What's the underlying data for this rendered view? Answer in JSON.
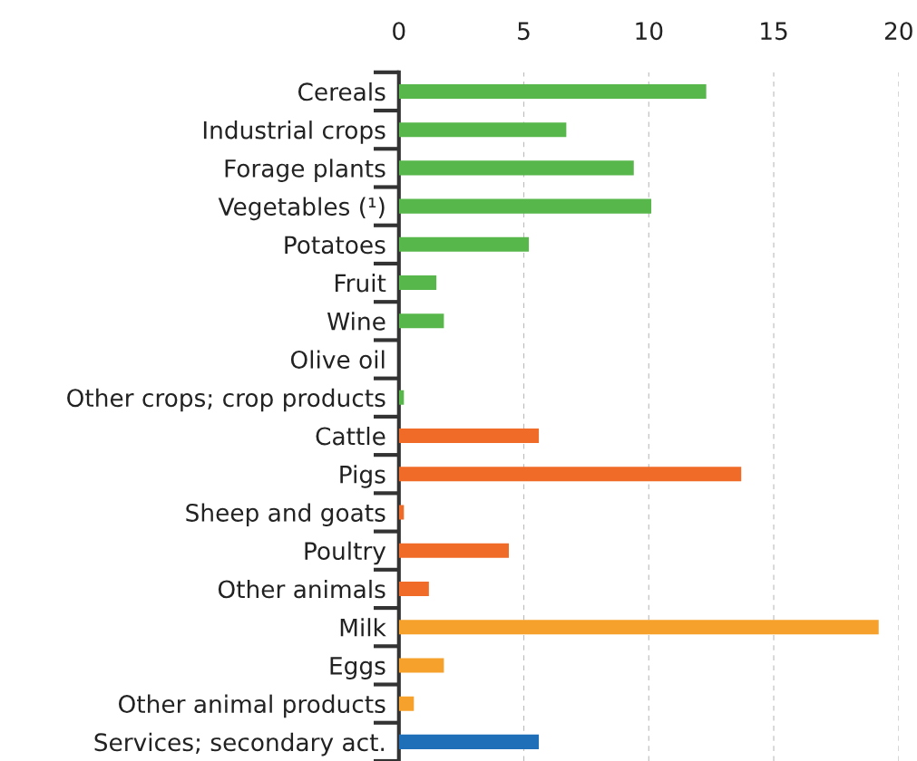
{
  "chart_data": {
    "type": "bar",
    "orientation": "horizontal",
    "categories": [
      "Cereals",
      "Industrial crops",
      "Forage plants",
      "Vegetables (¹)",
      "Potatoes",
      "Fruit",
      "Wine",
      "Olive oil",
      "Other crops; crop products",
      "Cattle",
      "Pigs",
      "Sheep and goats",
      "Poultry",
      "Other animals",
      "Milk",
      "Eggs",
      "Other animal products",
      "Services; secondary act."
    ],
    "values": [
      12.3,
      6.7,
      9.4,
      10.1,
      5.2,
      1.5,
      1.8,
      null,
      0.2,
      5.6,
      13.7,
      0.2,
      4.4,
      1.2,
      19.2,
      1.8,
      0.6,
      5.6
    ],
    "colors": [
      "#58b74a",
      "#58b74a",
      "#58b74a",
      "#58b74a",
      "#58b74a",
      "#58b74a",
      "#58b74a",
      "#58b74a",
      "#58b74a",
      "#f06a28",
      "#f06a28",
      "#f06a28",
      "#f06a28",
      "#f06a28",
      "#f6a12b",
      "#f6a12b",
      "#f6a12b",
      "#1e6fb8"
    ],
    "xlim": [
      0,
      20
    ],
    "xticks": [
      0,
      5,
      10,
      15,
      20
    ],
    "grid": "x"
  }
}
